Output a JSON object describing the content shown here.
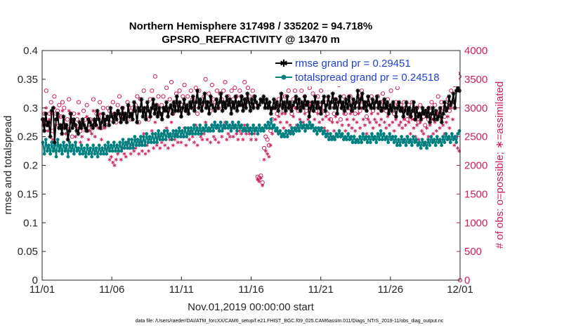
{
  "chart_data": {
    "type": "line",
    "title": [
      "Northern Hemisphere 317498 / 335202 = 94.718%",
      "GPSRO_REFRACTIVITY @ 13470 m"
    ],
    "xlabel": "Nov.01,2019 00:00:00 start",
    "ylabel_left": "rmse and totalspread",
    "ylabel_right": "# of obs: o=possible; ∗=assimilated",
    "x_ticks": [
      "11/01",
      "11/06",
      "11/11",
      "11/16",
      "11/21",
      "11/26",
      "12/01"
    ],
    "x_range_days": [
      0,
      30
    ],
    "ylim_left": [
      0,
      0.4
    ],
    "y_ticks_left": [
      "0",
      "0.05",
      "0.1",
      "0.15",
      "0.2",
      "0.25",
      "0.3",
      "0.35",
      "0.4"
    ],
    "ylim_right": [
      0,
      4000
    ],
    "y_ticks_right": [
      "0",
      "500",
      "1000",
      "1500",
      "2000",
      "2500",
      "3000",
      "3500",
      "4000"
    ],
    "legend_position": "top-right",
    "series": [
      {
        "name": "rmse grand pr = 0.29451",
        "color": "#000000",
        "marker": "asterisk",
        "values": [
          0.28,
          0.26,
          0.29,
          0.27,
          0.275,
          0.25,
          0.295,
          0.3,
          0.24,
          0.28,
          0.29,
          0.265,
          0.27,
          0.255,
          0.285,
          0.265,
          0.27,
          0.245,
          0.26,
          0.29,
          0.265,
          0.28,
          0.27,
          0.26,
          0.255,
          0.275,
          0.265,
          0.28,
          0.27,
          0.265,
          0.26,
          0.28,
          0.275,
          0.27,
          0.265,
          0.28,
          0.27,
          0.295,
          0.28,
          0.265,
          0.275,
          0.29,
          0.27,
          0.28,
          0.285,
          0.27,
          0.3,
          0.285,
          0.275,
          0.29,
          0.28,
          0.295,
          0.29,
          0.275,
          0.3,
          0.28,
          0.29,
          0.275,
          0.305,
          0.285,
          0.29,
          0.28,
          0.31,
          0.295,
          0.275,
          0.3,
          0.295,
          0.315,
          0.285,
          0.3,
          0.28,
          0.31,
          0.295,
          0.285,
          0.3,
          0.315,
          0.29,
          0.305,
          0.285,
          0.3,
          0.29,
          0.28,
          0.3,
          0.295,
          0.31,
          0.285,
          0.3,
          0.305,
          0.29,
          0.31,
          0.295,
          0.32,
          0.295,
          0.31,
          0.285,
          0.3,
          0.315,
          0.295,
          0.305,
          0.29,
          0.31,
          0.3,
          0.32,
          0.295,
          0.31,
          0.33,
          0.3,
          0.315,
          0.295,
          0.31,
          0.325,
          0.3,
          0.31,
          0.29,
          0.32,
          0.305,
          0.3,
          0.295,
          0.315,
          0.3,
          0.31,
          0.325,
          0.295,
          0.31,
          0.3,
          0.32,
          0.305,
          0.315,
          0.29,
          0.31,
          0.3,
          0.32,
          0.295,
          0.31,
          0.305,
          0.32,
          0.295,
          0.315,
          0.3,
          0.325,
          0.31,
          0.295,
          0.315,
          0.3,
          0.32,
          0.31,
          0.3,
          0.305,
          0.315,
          0.31,
          0.32,
          0.3,
          0.315,
          0.3,
          0.31,
          0.29,
          0.3,
          0.315,
          0.3,
          0.31,
          0.295,
          0.305,
          0.325,
          0.3,
          0.31,
          0.295,
          0.32,
          0.3,
          0.31,
          0.295,
          0.305,
          0.31,
          0.32,
          0.3,
          0.315,
          0.295,
          0.31,
          0.3,
          0.32,
          0.305,
          0.31,
          0.285,
          0.3,
          0.31,
          0.295,
          0.32,
          0.3,
          0.31,
          0.3,
          0.29,
          0.31,
          0.32,
          0.295,
          0.305,
          0.32,
          0.3,
          0.31,
          0.325,
          0.3,
          0.315,
          0.29,
          0.31,
          0.32,
          0.3,
          0.31,
          0.295,
          0.315,
          0.3,
          0.32,
          0.305,
          0.295,
          0.315,
          0.3,
          0.31,
          0.33,
          0.3,
          0.315,
          0.325,
          0.3,
          0.31,
          0.295,
          0.32,
          0.305,
          0.3,
          0.315,
          0.3,
          0.31,
          0.32,
          0.3,
          0.31,
          0.295,
          0.3,
          0.315,
          0.3,
          0.31,
          0.29,
          0.305,
          0.295,
          0.31,
          0.3,
          0.285,
          0.3,
          0.31,
          0.295,
          0.3,
          0.285,
          0.295,
          0.31,
          0.29,
          0.3,
          0.285,
          0.295,
          0.31,
          0.28,
          0.3,
          0.285,
          0.29,
          0.28,
          0.3,
          0.29,
          0.295,
          0.285,
          0.3,
          0.275,
          0.29,
          0.3,
          0.28,
          0.295,
          0.28,
          0.285,
          0.3,
          0.275,
          0.29,
          0.31,
          0.295,
          0.3,
          0.32,
          0.305,
          0.31,
          0.325,
          0.3,
          0.33,
          0.335,
          0.33
        ]
      },
      {
        "name": "totalspread grand pr = 0.24518",
        "color": "#008080",
        "marker": "dot",
        "values": [
          0.24,
          0.22,
          0.245,
          0.225,
          0.235,
          0.22,
          0.24,
          0.225,
          0.235,
          0.215,
          0.245,
          0.225,
          0.235,
          0.22,
          0.24,
          0.225,
          0.235,
          0.215,
          0.24,
          0.225,
          0.235,
          0.22,
          0.24,
          0.225,
          0.23,
          0.22,
          0.235,
          0.22,
          0.23,
          0.215,
          0.235,
          0.22,
          0.23,
          0.215,
          0.235,
          0.22,
          0.23,
          0.215,
          0.235,
          0.22,
          0.23,
          0.22,
          0.235,
          0.22,
          0.24,
          0.225,
          0.235,
          0.225,
          0.24,
          0.225,
          0.235,
          0.225,
          0.24,
          0.225,
          0.245,
          0.23,
          0.24,
          0.23,
          0.245,
          0.23,
          0.245,
          0.23,
          0.25,
          0.235,
          0.245,
          0.235,
          0.25,
          0.235,
          0.25,
          0.235,
          0.255,
          0.24,
          0.25,
          0.24,
          0.255,
          0.24,
          0.255,
          0.24,
          0.26,
          0.245,
          0.255,
          0.245,
          0.26,
          0.245,
          0.26,
          0.25,
          0.255,
          0.245,
          0.26,
          0.25,
          0.26,
          0.25,
          0.265,
          0.25,
          0.26,
          0.25,
          0.265,
          0.25,
          0.265,
          0.255,
          0.265,
          0.255,
          0.27,
          0.255,
          0.265,
          0.255,
          0.27,
          0.255,
          0.265,
          0.26,
          0.27,
          0.26,
          0.265,
          0.26,
          0.27,
          0.26,
          0.275,
          0.265,
          0.27,
          0.26,
          0.275,
          0.26,
          0.27,
          0.265,
          0.275,
          0.265,
          0.27,
          0.26,
          0.275,
          0.265,
          0.27,
          0.26,
          0.275,
          0.265,
          0.27,
          0.26,
          0.265,
          0.26,
          0.27,
          0.26,
          0.265,
          0.255,
          0.27,
          0.26,
          0.265,
          0.255,
          0.27,
          0.26,
          0.265,
          0.26,
          0.27,
          0.265,
          0.275,
          0.265,
          0.28,
          0.265,
          0.27,
          0.26,
          0.265,
          0.255,
          0.26,
          0.25,
          0.255,
          0.25,
          0.26,
          0.25,
          0.26,
          0.255,
          0.265,
          0.255,
          0.265,
          0.26,
          0.27,
          0.26,
          0.275,
          0.265,
          0.27,
          0.26,
          0.27,
          0.265,
          0.275,
          0.265,
          0.27,
          0.26,
          0.265,
          0.255,
          0.265,
          0.26,
          0.265,
          0.255,
          0.26,
          0.25,
          0.255,
          0.245,
          0.255,
          0.245,
          0.25,
          0.245,
          0.255,
          0.25,
          0.26,
          0.25,
          0.255,
          0.245,
          0.25,
          0.245,
          0.255,
          0.245,
          0.25,
          0.24,
          0.25,
          0.24,
          0.245,
          0.24,
          0.25,
          0.24,
          0.255,
          0.245,
          0.25,
          0.24,
          0.25,
          0.24,
          0.255,
          0.245,
          0.25,
          0.24,
          0.255,
          0.245,
          0.26,
          0.245,
          0.255,
          0.245,
          0.25,
          0.24,
          0.255,
          0.245,
          0.25,
          0.24,
          0.25,
          0.235,
          0.245,
          0.235,
          0.25,
          0.24,
          0.245,
          0.235,
          0.25,
          0.24,
          0.245,
          0.235,
          0.25,
          0.24,
          0.245,
          0.235,
          0.24,
          0.23,
          0.245,
          0.235,
          0.24,
          0.23,
          0.245,
          0.235,
          0.25,
          0.24,
          0.245,
          0.235,
          0.25,
          0.24,
          0.245,
          0.235,
          0.25,
          0.24,
          0.255,
          0.245,
          0.25,
          0.24,
          0.255,
          0.245,
          0.25,
          0.24,
          0.255,
          0.26
        ]
      },
      {
        "name": "possible",
        "color": "#cc1f5e",
        "marker": "open-circle",
        "axis": "right",
        "values": [
          2800,
          2900,
          3300,
          2700,
          2900,
          3100,
          2600,
          3200,
          2900,
          2950,
          3050,
          2850,
          3100,
          3000,
          2700,
          2800,
          3150,
          2900,
          2500,
          2900,
          2700,
          2800,
          3100,
          2600,
          2700,
          2950,
          2800,
          3050,
          2650,
          2800,
          2750,
          3150,
          2700,
          2900,
          2850,
          3100,
          2650,
          3000,
          2850,
          2700,
          3000,
          2950,
          2800,
          3100,
          2900,
          2750,
          3050,
          3200,
          2850,
          3000,
          2900,
          2850,
          3100,
          3000,
          2800,
          3000,
          2950,
          3050,
          3200,
          2750,
          3150,
          2950,
          3300,
          2850,
          3000,
          2800,
          3150,
          3300,
          3000,
          3550,
          3050,
          3200,
          2900,
          3050,
          3200,
          3000,
          3350,
          2950,
          3150,
          3450,
          2900,
          3100,
          3250,
          3050,
          3300,
          3050,
          3200,
          3400,
          2950,
          3200,
          3050,
          3300,
          3150,
          3000,
          3350,
          2900,
          3300,
          3100,
          3050,
          3200,
          3500,
          3100,
          3250,
          2950,
          3400,
          3150,
          3100,
          3300,
          3000,
          3250,
          3150,
          3300,
          3450,
          3050,
          3200,
          3100,
          3300,
          3150,
          3350,
          3200,
          3050,
          3300,
          3200,
          3050,
          3450,
          3150,
          3350,
          3200,
          3050,
          3300,
          3200,
          3050,
          1800,
          1780,
          1820,
          1700,
          2300,
          2500,
          2450,
          2350,
          2600,
          2800,
          3000,
          3100,
          2900,
          3150,
          3050,
          3200,
          2950,
          3200,
          3050,
          3300,
          3000,
          2900,
          3150,
          3300,
          3000,
          2950,
          3100,
          3300,
          3050,
          3200,
          2950,
          3100,
          3350,
          3000,
          3250,
          3100,
          2950,
          3200,
          3050,
          3300,
          3100,
          2950,
          3150,
          2900,
          3100,
          2800,
          3050,
          2900,
          3150,
          3050,
          3400,
          2800,
          3000,
          3200,
          2900,
          3100,
          3000,
          3200,
          2950,
          3100,
          2900,
          3050,
          3200,
          2950,
          3300,
          3100,
          3000,
          2850,
          3100,
          3050,
          3200,
          2950,
          3100,
          3050,
          3200,
          3000,
          3100,
          3250,
          3050,
          2950,
          3150,
          3000,
          3300,
          3050,
          2900,
          3100,
          3350,
          3000,
          3050,
          2950,
          3100,
          3000,
          2800,
          3050,
          2850,
          3100,
          2950,
          2800,
          3000,
          2750,
          3050,
          2900,
          2850,
          2700,
          2950,
          2800,
          3000,
          3100,
          2850,
          3050,
          2900,
          3200,
          2950,
          3100,
          3000,
          2850,
          3050,
          3150,
          2950,
          3300,
          3100,
          3400,
          3500,
          3600,
          3550
        ]
      },
      {
        "name": "assimilated",
        "color": "#cc1f5e",
        "marker": "asterisk",
        "axis": "right",
        "values": [
          2700,
          2750,
          3000,
          2600,
          2800,
          2900,
          2450,
          3000,
          2700,
          2800,
          2850,
          2650,
          2950,
          2800,
          2550,
          2650,
          2950,
          2750,
          2350,
          2750,
          2500,
          2650,
          2900,
          2400,
          2500,
          2750,
          2600,
          2850,
          2450,
          2600,
          2550,
          2950,
          2500,
          2700,
          2650,
          2900,
          2450,
          2800,
          2650,
          2200,
          2300,
          2100,
          2150,
          2050,
          2000,
          2100,
          2200,
          2250,
          2100,
          2300,
          2200,
          2150,
          2400,
          2300,
          2200,
          2350,
          2250,
          2300,
          2450,
          2200,
          2400,
          2250,
          2550,
          2200,
          2350,
          2250,
          2450,
          2600,
          2300,
          2750,
          2350,
          2500,
          2300,
          2400,
          2550,
          2350,
          2650,
          2300,
          2450,
          2750,
          2350,
          2450,
          2550,
          2400,
          2600,
          2400,
          2500,
          2650,
          2350,
          2550,
          2450,
          2600,
          2500,
          2400,
          2700,
          2350,
          2600,
          2500,
          2450,
          2550,
          2750,
          2450,
          2600,
          2400,
          2700,
          2500,
          2450,
          2650,
          2400,
          2600,
          2500,
          2650,
          2750,
          2450,
          2550,
          2500,
          2650,
          2500,
          2700,
          2550,
          2450,
          2600,
          2550,
          2450,
          2700,
          2550,
          2650,
          2550,
          2450,
          2650,
          2550,
          2450,
          1750,
          1720,
          1780,
          1650,
          2100,
          2250,
          2200,
          2150,
          2350,
          2550,
          2700,
          2800,
          2600,
          2850,
          2750,
          2900,
          2650,
          2900,
          2750,
          3000,
          2700,
          2600,
          2850,
          3000,
          2700,
          2650,
          2800,
          3000,
          2750,
          2900,
          2650,
          2800,
          3050,
          2700,
          2950,
          2800,
          2650,
          2900,
          2750,
          3000,
          2800,
          2650,
          2850,
          2600,
          2800,
          2500,
          2750,
          2600,
          2850,
          2750,
          3100,
          2500,
          2700,
          2900,
          2600,
          2800,
          2700,
          2900,
          2650,
          2800,
          2600,
          2750,
          2900,
          2650,
          3000,
          2800,
          2700,
          2550,
          2800,
          2750,
          2900,
          2650,
          2800,
          2750,
          2900,
          2700,
          2800,
          2950,
          2750,
          2650,
          2850,
          2700,
          3000,
          2750,
          2600,
          2800,
          3050,
          2700,
          2750,
          2650,
          2800,
          2700,
          2500,
          2750,
          2550,
          2800,
          2650,
          2500,
          2700,
          2450,
          2750,
          2600,
          2550,
          2400,
          2650,
          2500,
          2700,
          2800,
          2550,
          2750,
          2600,
          2900,
          2650,
          2800,
          2700,
          2550,
          2750,
          2850,
          2650,
          3000,
          2800,
          2350,
          2500,
          2300,
          2250
        ]
      }
    ],
    "footer": "data file: /Users/raeder/DAI/ATM_forcXX/CAM6_setup/f.e21.FHIST_BGC.f09_025.CAM6assim.011/Diags_NTrS_2019-11/obs_diag_output.nc"
  }
}
